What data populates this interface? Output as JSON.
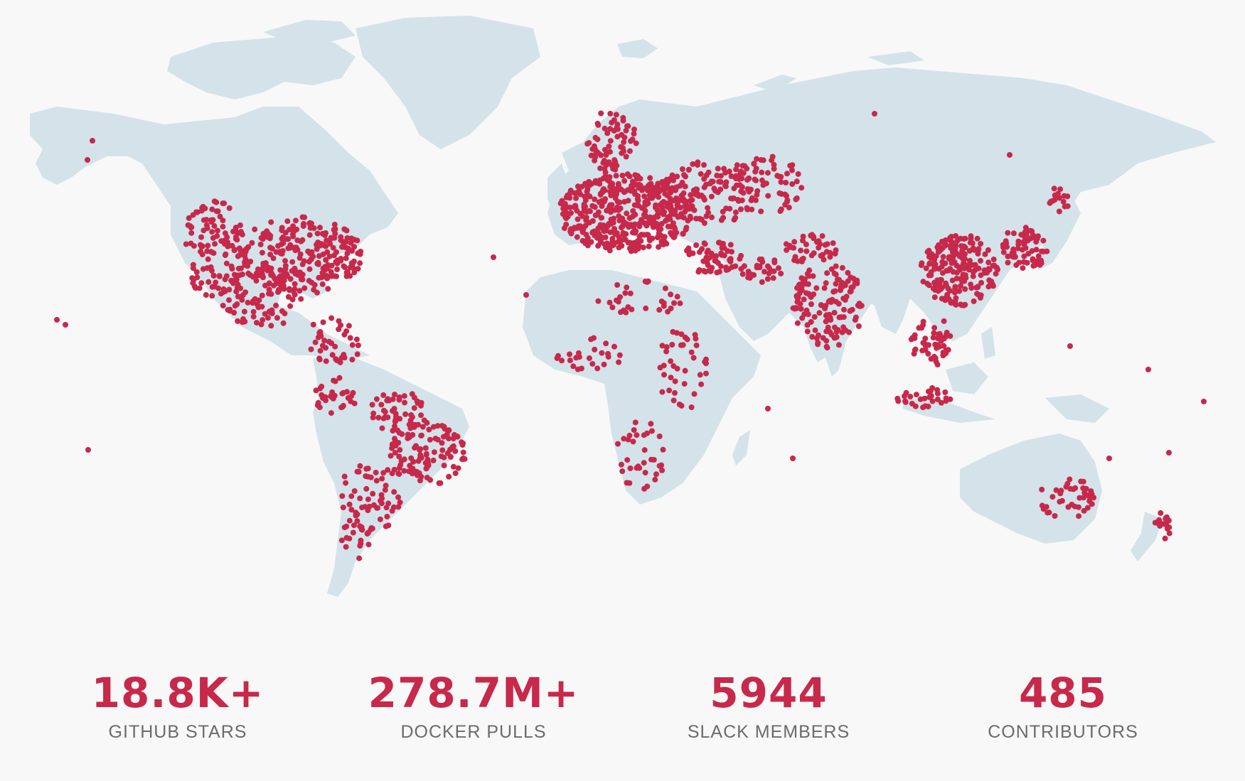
{
  "colors": {
    "background": "#f8f8f8",
    "land": "#d3e3e9",
    "dot": "#c8284a",
    "label": "#6b6b6b"
  },
  "map": {
    "type": "world-map-dot-density",
    "marker_icon": "red-dot"
  },
  "stats": [
    {
      "value": "18.8K+",
      "label": "GITHUB STARS"
    },
    {
      "value": "278.7M+",
      "label": "DOCKER PULLS"
    },
    {
      "value": "5944",
      "label": "SLACK MEMBERS"
    },
    {
      "value": "485",
      "label": "CONTRIBUTORS"
    }
  ]
}
